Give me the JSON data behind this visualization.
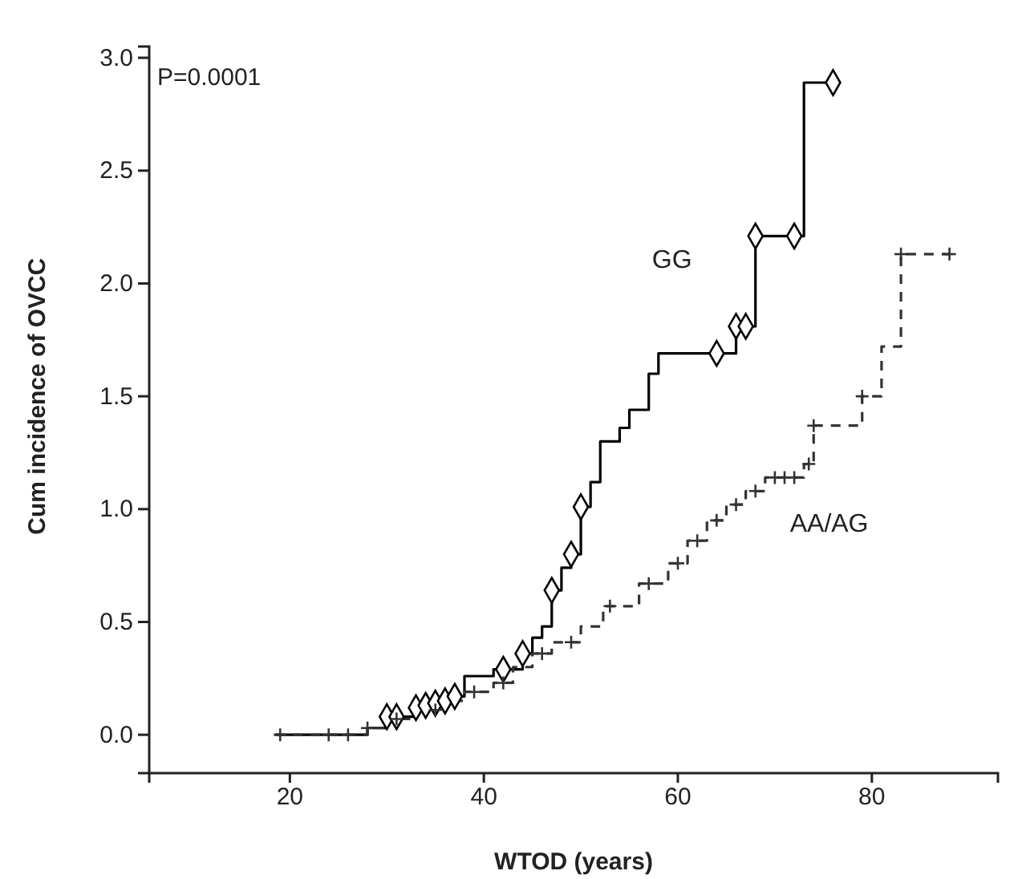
{
  "chart_data": {
    "type": "step",
    "xlabel": "WTOD (years)",
    "ylabel": "Cum incidence of OVCC",
    "annotations": [
      "P=0.0001"
    ],
    "xlim": [
      5.5,
      93
    ],
    "xticks": [
      20,
      40,
      60,
      80
    ],
    "ylim": [
      -0.17,
      3.05
    ],
    "yticks": [
      {
        "value": 0,
        "label": "0.0"
      },
      {
        "value": 0.5,
        "label": "0.5"
      },
      {
        "value": 1,
        "label": "1.0"
      },
      {
        "value": 1.5,
        "label": "1.5"
      },
      {
        "value": 2,
        "label": "2.0"
      },
      {
        "value": 2.5,
        "label": "2.5"
      },
      {
        "value": 3,
        "label": "3.0"
      }
    ],
    "grid": false,
    "legend": false,
    "series": [
      {
        "name": "GG",
        "color": "#000000",
        "line_style": "solid",
        "marker": "none",
        "x": [
          18.5,
          28,
          30,
          33,
          34,
          35,
          36,
          37,
          38,
          41,
          44,
          45,
          46,
          47,
          48,
          49,
          50,
          51,
          52,
          54,
          55,
          57,
          58,
          66,
          68,
          73,
          76
        ],
        "values": [
          0,
          0.03,
          0.08,
          0.12,
          0.13,
          0.14,
          0.15,
          0.17,
          0.26,
          0.29,
          0.36,
          0.43,
          0.48,
          0.64,
          0.74,
          0.8,
          1.01,
          1.12,
          1.3,
          1.36,
          1.44,
          1.6,
          1.69,
          1.81,
          2.21,
          2.89,
          2.89
        ]
      },
      {
        "name": "AA/AG",
        "color": "#333333",
        "line_style": "dashed",
        "marker": "none",
        "x": [
          18.5,
          28,
          30,
          33,
          36,
          38,
          41,
          43,
          45,
          47,
          50,
          52.3,
          56,
          59,
          61,
          63,
          65,
          67,
          69,
          73,
          74,
          79,
          81,
          83,
          88
        ],
        "values": [
          0,
          0.03,
          0.07,
          0.11,
          0.15,
          0.19,
          0.23,
          0.3,
          0.36,
          0.41,
          0.48,
          0.57,
          0.67,
          0.76,
          0.86,
          0.95,
          1.02,
          1.08,
          1.14,
          1.2,
          1.37,
          1.5,
          1.72,
          2.13,
          2.13
        ]
      },
      {
        "type": "scatter",
        "color": "#000000",
        "marker": "diamond",
        "x": [
          30,
          31,
          33,
          34,
          35,
          36,
          37,
          42,
          44,
          47,
          49,
          50,
          64,
          66,
          67,
          68,
          72,
          76
        ],
        "values": [
          0.08,
          0.08,
          0.12,
          0.13,
          0.14,
          0.15,
          0.17,
          0.29,
          0.36,
          0.64,
          0.8,
          1.01,
          1.69,
          1.81,
          1.81,
          2.21,
          2.21,
          2.89
        ]
      },
      {
        "type": "scatter",
        "color": "#333333",
        "marker": "cross",
        "x": [
          19,
          24,
          26,
          28,
          31,
          35,
          39,
          42,
          46,
          49,
          53,
          57,
          60,
          62,
          64,
          66,
          68,
          70,
          71,
          72,
          73.5,
          74,
          79,
          83,
          88
        ],
        "values": [
          0,
          0,
          0,
          0.03,
          0.07,
          0.11,
          0.19,
          0.23,
          0.36,
          0.41,
          0.57,
          0.67,
          0.76,
          0.86,
          0.95,
          1.02,
          1.08,
          1.14,
          1.14,
          1.14,
          1.2,
          1.37,
          1.5,
          2.13,
          2.13
        ]
      }
    ]
  }
}
